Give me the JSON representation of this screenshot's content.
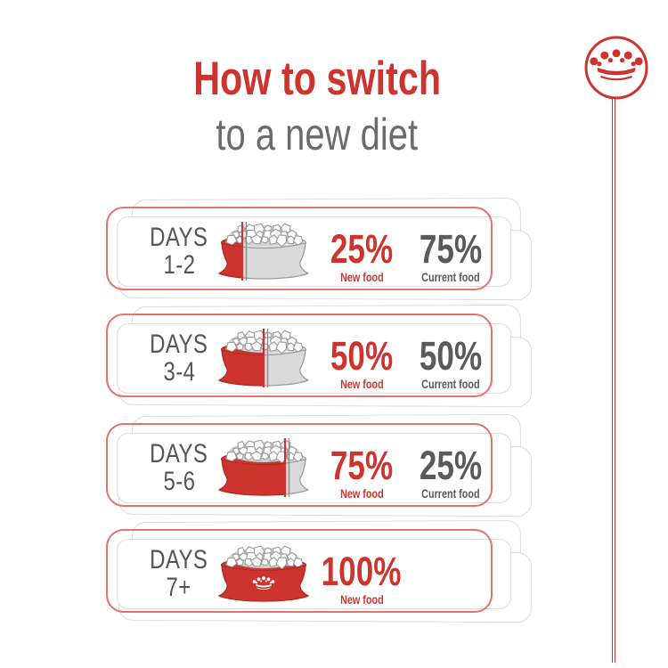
{
  "colors": {
    "accent_red": "#cd342e",
    "outline_red": "#e2736d",
    "text_gray": "#55565a",
    "title_gray": "#6b6b6d",
    "card_border": "#dddddd",
    "bowl_gray": "#dadada",
    "bowl_stroke": "#9b9b9b"
  },
  "title": {
    "line1": "How to switch",
    "line2": "to a new diet"
  },
  "brand": {
    "logo_icon": "crown-in-circle-icon"
  },
  "rows": [
    {
      "days_label": "DAYS",
      "days_range": "1-2",
      "new_pct": "25%",
      "new_label": "New food",
      "current_pct": "75%",
      "current_label": "Current food",
      "bowl_fill_percent": 25,
      "bowl_icon": "food-bowl-25-percent-new",
      "has_crown_on_bowl": false
    },
    {
      "days_label": "DAYS",
      "days_range": "3-4",
      "new_pct": "50%",
      "new_label": "New food",
      "current_pct": "50%",
      "current_label": "Current food",
      "bowl_fill_percent": 50,
      "bowl_icon": "food-bowl-50-percent-new",
      "has_crown_on_bowl": false
    },
    {
      "days_label": "DAYS",
      "days_range": "5-6",
      "new_pct": "75%",
      "new_label": "New food",
      "current_pct": "25%",
      "current_label": "Current food",
      "bowl_fill_percent": 75,
      "bowl_icon": "food-bowl-75-percent-new",
      "has_crown_on_bowl": false
    },
    {
      "days_label": "DAYS",
      "days_range": "7+",
      "new_pct": "100%",
      "new_label": "New food",
      "current_pct": null,
      "current_label": null,
      "bowl_fill_percent": 100,
      "bowl_icon": "food-bowl-100-percent-new",
      "has_crown_on_bowl": true
    }
  ]
}
